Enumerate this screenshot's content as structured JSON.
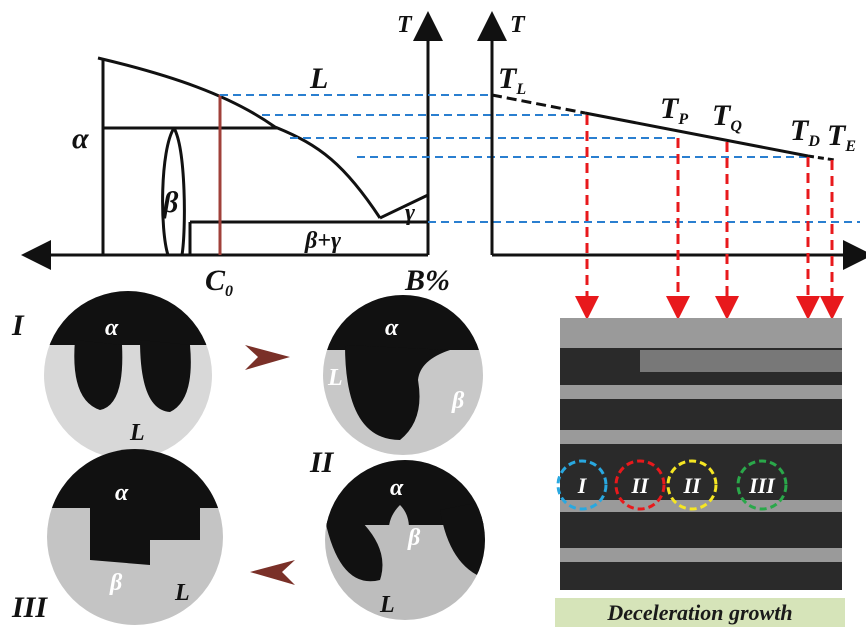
{
  "phase_diagram": {
    "axis_label": "T",
    "composition_label": "B%",
    "liquid": "L",
    "alpha": "α",
    "beta": "β",
    "gamma": "γ",
    "beta_gamma": "β+γ",
    "c0": {
      "base": "C",
      "sub": "0"
    }
  },
  "cooling_curve": {
    "axis_label": "T",
    "points": [
      {
        "base": "T",
        "sub": "L"
      },
      {
        "base": "T",
        "sub": "P"
      },
      {
        "base": "T",
        "sub": "Q"
      },
      {
        "base": "T",
        "sub": "D"
      },
      {
        "base": "T",
        "sub": "E"
      }
    ]
  },
  "micrographs": [
    {
      "stage": "I",
      "labels": [
        "α",
        "L"
      ]
    },
    {
      "labels": [
        "α",
        "L",
        "β"
      ]
    },
    {
      "stage": "II",
      "labels": [
        "α",
        "β",
        "L"
      ]
    },
    {
      "stage": "III",
      "labels": [
        "α",
        "β",
        "L"
      ]
    }
  ],
  "structure_image": {
    "markers": [
      "I",
      "II",
      "II",
      "III"
    ],
    "caption": "Deceleration growth"
  }
}
